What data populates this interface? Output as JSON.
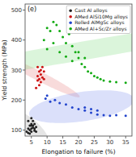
{
  "chart_data": {
    "type": "scatter",
    "xlabel": "Elongation to failure (%)",
    "ylabel": "Yield strength (MPa)",
    "xlim": [
      3,
      37
    ],
    "ylim": [
      80,
      520
    ],
    "xticks": [
      5,
      10,
      15,
      20,
      25,
      30,
      35
    ],
    "yticks": [
      100,
      200,
      300,
      400,
      500
    ],
    "legend": "upper right",
    "annotations": [
      "(e)"
    ],
    "series": [
      {
        "name": "Cast AI alloys",
        "color": "#222222",
        "x": [
          3.5,
          4,
          4.5,
          4,
          5,
          5,
          5.5,
          6,
          5,
          4.5,
          5.5,
          6,
          6.5,
          5,
          4,
          5.5,
          4.5,
          6,
          5,
          6.5
        ],
        "values": [
          95,
          105,
          115,
          130,
          120,
          140,
          108,
          98,
          95,
          88,
          130,
          120,
          110,
          105,
          90,
          115,
          100,
          105,
          115,
          95
        ],
        "ellipse": {
          "cx": 5.0,
          "cy": 112,
          "width": 6.0,
          "height": 100,
          "angle": 5,
          "color": "#aaaaaa"
        }
      },
      {
        "name": "AMed AlSi10Mg alloys",
        "color": "#cc1111",
        "x": [
          6.5,
          7,
          7.5,
          7,
          8,
          8.5,
          8,
          7.5,
          7,
          8.5,
          9,
          9,
          8,
          7.5
        ],
        "values": [
          240,
          265,
          270,
          280,
          285,
          275,
          300,
          295,
          310,
          310,
          295,
          270,
          260,
          250
        ],
        "ellipse": {
          "cx": 7.8,
          "cy": 278,
          "width": 6.5,
          "height": 140,
          "angle": 10,
          "color": "#e88888"
        }
      },
      {
        "name": "Rolled AlMgSc alloys",
        "color": "#2244cc",
        "x": [
          9.5,
          10,
          11,
          12.5,
          14,
          16,
          18,
          20,
          22,
          24,
          26,
          28,
          30,
          32,
          35,
          22,
          24,
          26
        ],
        "values": [
          205,
          215,
          195,
          200,
          190,
          185,
          175,
          170,
          165,
          158,
          152,
          150,
          148,
          150,
          148,
          175,
          170,
          165
        ],
        "ellipse": {
          "cx": 21,
          "cy": 178,
          "width": 30,
          "height": 110,
          "angle": -8,
          "color": "#8899ee"
        }
      },
      {
        "name": "AMed Al+Sc/Zr alloys",
        "color": "#11aa11",
        "x": [
          9,
          10,
          11,
          12,
          13,
          14,
          15,
          16,
          17,
          18,
          19,
          20,
          21,
          22,
          23,
          24,
          25,
          26,
          27,
          28,
          30,
          32,
          35,
          10,
          12,
          14,
          16,
          18,
          20,
          22
        ],
        "values": [
          400,
          440,
          430,
          460,
          450,
          430,
          410,
          390,
          420,
          380,
          360,
          340,
          320,
          310,
          295,
          290,
          280,
          275,
          270,
          265,
          262,
          260,
          258,
          370,
          390,
          360,
          345,
          330,
          360,
          340
        ],
        "ellipse": {
          "cx": 19,
          "cy": 360,
          "width": 30,
          "height": 260,
          "angle": -28,
          "color": "#88dd88"
        }
      }
    ]
  }
}
